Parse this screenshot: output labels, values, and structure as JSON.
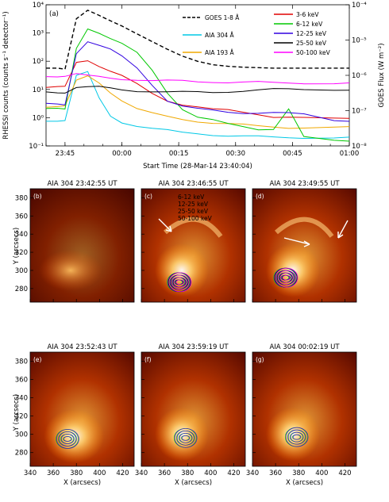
{
  "chart_data": [
    {
      "type": "line",
      "panel_label": "(a)",
      "xlabel": "Start Time (28-Mar-14 23:40:04)",
      "ylabel": "RHESSI counts (counts s⁻¹ detector⁻¹)",
      "ylabel_right": "GOES Flux (W m⁻²)",
      "x_ticks": [
        "23:45",
        "00:00",
        "00:15",
        "00:30",
        "00:45",
        "01:00"
      ],
      "y_ticks": [
        "10⁻¹",
        "10⁰",
        "10¹",
        "10²",
        "10³",
        "10⁴"
      ],
      "y_ticks_right": [
        "10⁻⁸",
        "10⁻⁷",
        "10⁻⁶",
        "10⁻⁵",
        "10⁻⁴"
      ],
      "ylim": [
        0.1,
        10000
      ],
      "ylim_right": [
        1e-08,
        0.0001
      ],
      "yscale": "log",
      "x_minutes_from_2340": [
        0,
        3,
        5,
        8,
        11,
        14,
        17,
        20,
        24,
        28,
        32,
        36,
        40,
        44,
        48,
        52,
        56,
        60,
        64,
        68,
        76,
        80
      ],
      "series": [
        {
          "name": "GOES 1-8 Å",
          "color": "#000000",
          "dash": true,
          "axis": "right",
          "values": [
            1.6e-06,
            1.6e-06,
            1.5e-06,
            4e-05,
            7e-05,
            5e-05,
            3.5e-05,
            2.5e-05,
            1.5e-05,
            9e-06,
            5.5e-06,
            3.5e-06,
            2.5e-06,
            2e-06,
            1.8e-06,
            1.7e-06,
            1.65e-06,
            1.6e-06,
            1.6e-06,
            1.6e-06,
            1.6e-06,
            1.6e-06
          ]
        },
        {
          "name": "AIA 304 Å",
          "color": "#00c8e6",
          "values": [
            0.8,
            0.8,
            0.8,
            30,
            40,
            5,
            1.2,
            0.7,
            0.5,
            0.4,
            0.35,
            0.3,
            0.28,
            0.25,
            0.23,
            0.22,
            0.21,
            0.2,
            0.2,
            0.2,
            0.2,
            0.2
          ]
        },
        {
          "name": "AIA 193 Å",
          "color": "#f0a800",
          "values": [
            2.5,
            2.5,
            2.5,
            20,
            30,
            18,
            8,
            4,
            2,
            1.4,
            1.1,
            0.9,
            0.75,
            0.65,
            0.6,
            0.55,
            0.5,
            0.48,
            0.45,
            0.45,
            0.45,
            0.45
          ]
        },
        {
          "name": "3-6 keV",
          "color": "#e00000",
          "values": [
            12,
            12,
            12,
            90,
            110,
            70,
            45,
            30,
            15,
            7,
            4,
            3,
            2.5,
            2,
            1.8,
            1.5,
            1.3,
            1.1,
            1.1,
            1.0,
            0.9,
            0.9
          ]
        },
        {
          "name": "6-12 keV",
          "color": "#00c800",
          "values": [
            2,
            2,
            2,
            300,
            1500,
            1000,
            600,
            400,
            200,
            50,
            8,
            2,
            1,
            0.8,
            0.6,
            0.5,
            0.4,
            0.4,
            2,
            0.2,
            0.15,
            0.15
          ]
        },
        {
          "name": "12-25 keV",
          "color": "#3000e0",
          "values": [
            3,
            3,
            3,
            200,
            500,
            350,
            250,
            150,
            60,
            15,
            4,
            2.5,
            2,
            1.8,
            1.6,
            1.5,
            1.5,
            1.5,
            1.4,
            1.3,
            0.8,
            0.8
          ]
        },
        {
          "name": "25-50 keV",
          "color": "#000000",
          "values": [
            8,
            8,
            8,
            12,
            12,
            12,
            11,
            10,
            9,
            8.5,
            8,
            8,
            8,
            8,
            8.5,
            9,
            9.5,
            10,
            10,
            10,
            10,
            10
          ]
        },
        {
          "name": "50-100 keV",
          "color": "#ff00ff",
          "values": [
            30,
            30,
            30,
            35,
            30,
            28,
            26,
            24,
            22,
            20,
            20,
            20,
            19,
            19,
            18,
            18,
            18,
            17,
            17,
            17,
            17,
            17
          ]
        }
      ]
    },
    {
      "type": "heatmap",
      "panels": [
        {
          "label": "(b)",
          "title": "AIA 304 23:42:55 UT"
        },
        {
          "label": "(c)",
          "title": "AIA 304 23:46:55 UT"
        },
        {
          "label": "(d)",
          "title": "AIA 304 23:49:55 UT"
        },
        {
          "label": "(e)",
          "title": "AIA 304 23:52:43 UT"
        },
        {
          "label": "(f)",
          "title": "AIA 304 23:59:19 UT"
        },
        {
          "label": "(g)",
          "title": "AIA 304 00:02:19 UT"
        }
      ],
      "xlabel": "X (arcsecs)",
      "ylabel": "Y (arcsecs)",
      "x_ticks": [
        "340",
        "360",
        "380",
        "400",
        "420"
      ],
      "y_ticks": [
        "280",
        "300",
        "320",
        "340",
        "360",
        "380"
      ],
      "contour_legend": [
        {
          "name": "6-12 keV",
          "color": "#00c800"
        },
        {
          "name": "12-25 keV",
          "color": "#3000e0"
        },
        {
          "name": "25-50 keV",
          "color": "#000000"
        },
        {
          "name": "50-100 keV",
          "color": "#ff00ff"
        }
      ]
    }
  ]
}
